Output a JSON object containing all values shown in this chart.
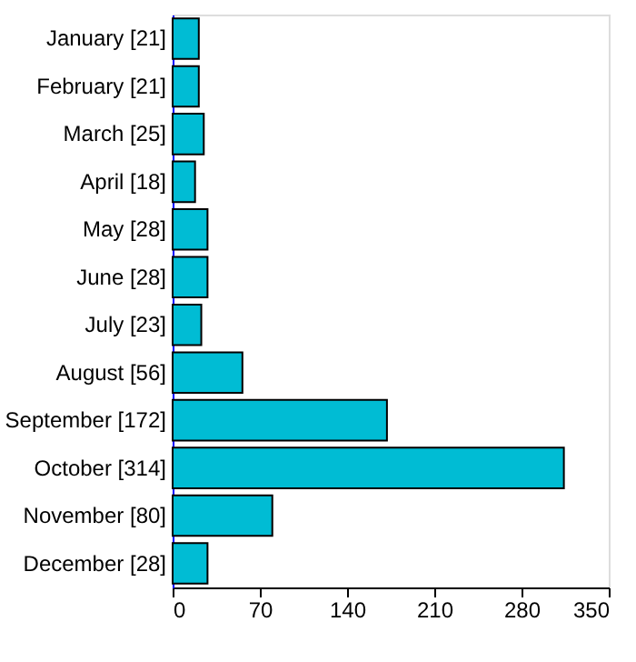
{
  "chart_data": {
    "type": "bar",
    "orientation": "horizontal",
    "categories": [
      "January [21]",
      "February [21]",
      "March [25]",
      "April [18]",
      "May [28]",
      "June [28]",
      "July [23]",
      "August [56]",
      "September [172]",
      "October [314]",
      "November [80]",
      "December [28]"
    ],
    "values": [
      21,
      21,
      25,
      18,
      28,
      28,
      23,
      56,
      172,
      314,
      80,
      28
    ],
    "color": "#00bcd4",
    "xlim": [
      0,
      350
    ],
    "xticks": [
      0,
      70,
      140,
      210,
      280,
      350
    ],
    "grid": false
  }
}
